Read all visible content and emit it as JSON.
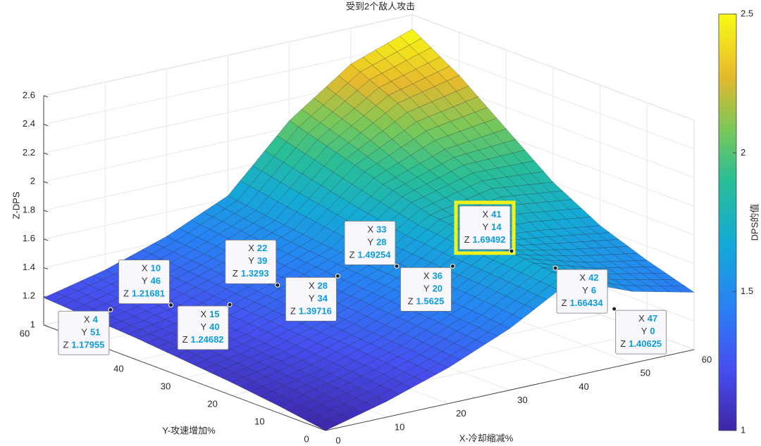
{
  "chart_data": {
    "type": "surface",
    "title": "受到2个敌人攻击",
    "xlabel": "X-冷却缩减%",
    "ylabel": "Y-攻速增加%",
    "zlabel": "Z-DPS",
    "x": [
      0,
      10,
      20,
      30,
      40,
      50,
      60
    ],
    "y": [
      0,
      10,
      20,
      30,
      40,
      50,
      60
    ],
    "z": [
      [
        1.0,
        1.11,
        1.25,
        1.43,
        1.67,
        1.5,
        1.4
      ],
      [
        1.05,
        1.15,
        1.28,
        1.46,
        1.7,
        1.58,
        1.5
      ],
      [
        1.09,
        1.18,
        1.31,
        1.48,
        1.72,
        1.68,
        1.62
      ],
      [
        1.12,
        1.21,
        1.34,
        1.5,
        1.76,
        1.85,
        1.8
      ],
      [
        1.15,
        1.23,
        1.37,
        1.53,
        1.85,
        2.0,
        2.05
      ],
      [
        1.17,
        1.26,
        1.4,
        1.57,
        1.95,
        2.2,
        2.3
      ],
      [
        1.19,
        1.29,
        1.43,
        1.62,
        2.05,
        2.35,
        2.5
      ]
    ],
    "xlim": [
      0,
      60
    ],
    "ylim": [
      0,
      60
    ],
    "zlim": [
      1,
      2.6
    ],
    "xticks": [
      0,
      10,
      20,
      30,
      40,
      50,
      60
    ],
    "yticks": [
      0,
      10,
      20,
      30,
      40,
      50,
      60
    ],
    "zticks": [
      1,
      1.2,
      1.4,
      1.6,
      1.8,
      2,
      2.2,
      2.4,
      2.6
    ],
    "grid": true,
    "colormap": "parula",
    "colorbar": {
      "label": "DPS的值",
      "lim": [
        1,
        2.5
      ],
      "ticks": [
        1,
        1.5,
        2,
        2.5
      ]
    },
    "datatip_labels": [
      "X",
      "Y",
      "Z"
    ],
    "datatips": [
      {
        "x": 4,
        "y": 51,
        "z": 1.17955
      },
      {
        "x": 10,
        "y": 46,
        "z": 1.21681
      },
      {
        "x": 15,
        "y": 40,
        "z": 1.24682
      },
      {
        "x": 22,
        "y": 39,
        "z": 1.3293
      },
      {
        "x": 28,
        "y": 34,
        "z": 1.39716
      },
      {
        "x": 33,
        "y": 28,
        "z": 1.49254
      },
      {
        "x": 36,
        "y": 20,
        "z": 1.5625
      },
      {
        "x": 41,
        "y": 14,
        "z": 1.69492
      },
      {
        "x": 42,
        "y": 6,
        "z": 1.66434
      },
      {
        "x": 47,
        "y": 0,
        "z": 1.40625
      }
    ]
  }
}
